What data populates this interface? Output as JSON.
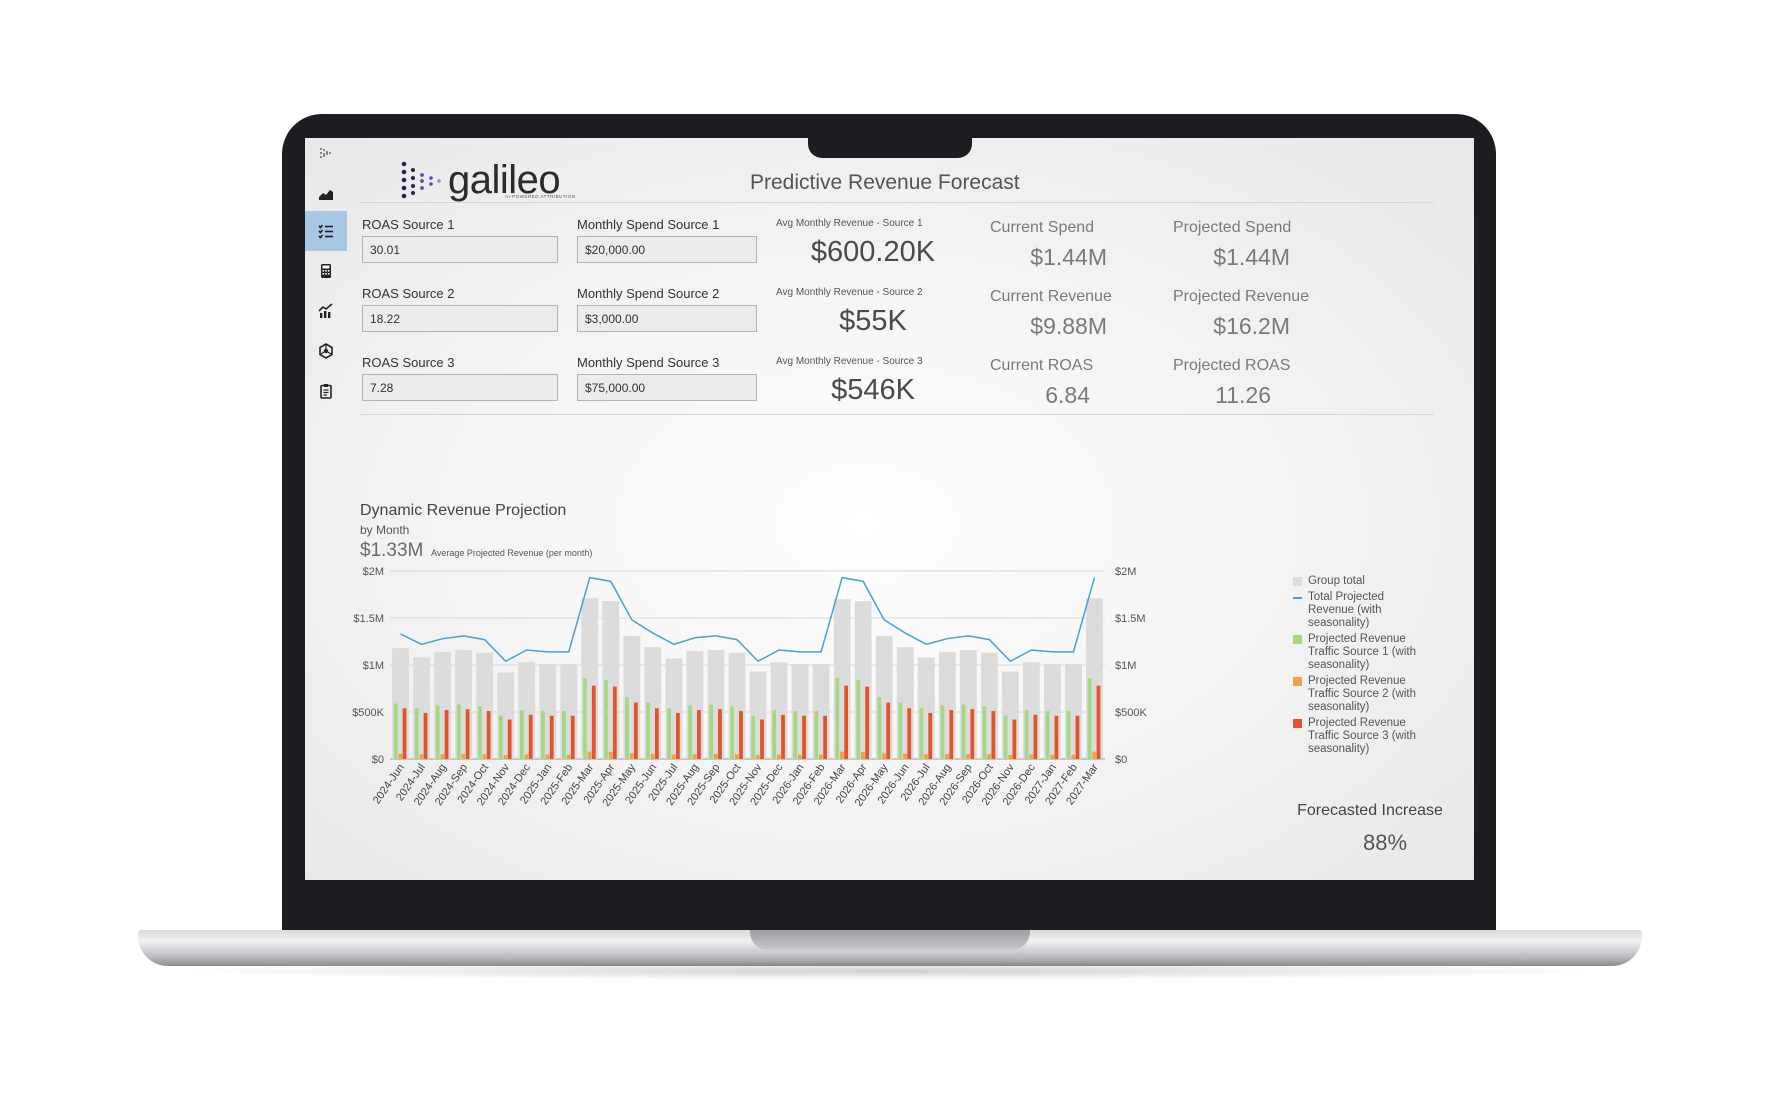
{
  "header": {
    "logo_text": "galileo",
    "logo_tagline": "AI-POWERED ATTRIBUTION",
    "title": "Predictive Revenue Forecast"
  },
  "sidebar": {
    "items": [
      {
        "icon": "filter-icon"
      },
      {
        "icon": "area-chart-icon"
      },
      {
        "icon": "checklist-icon",
        "active": true
      },
      {
        "icon": "calculator-icon"
      },
      {
        "icon": "bar-line-chart-icon"
      },
      {
        "icon": "network-icon"
      },
      {
        "icon": "clipboard-icon"
      }
    ]
  },
  "inputs": {
    "roas": [
      {
        "label": "ROAS Source 1",
        "value": "30.01"
      },
      {
        "label": "ROAS Source 2",
        "value": "18.22"
      },
      {
        "label": "ROAS Source 3",
        "value": "7.28"
      }
    ],
    "spend": [
      {
        "label": "Monthly Spend Source 1",
        "value": "$20,000.00"
      },
      {
        "label": "Monthly Spend Source 2",
        "value": "$3,000.00"
      },
      {
        "label": "Monthly Spend Source 3",
        "value": "$75,000.00"
      }
    ],
    "avg_revenue": [
      {
        "label": "Avg Monthly Revenue - Source 1",
        "value": "$600.20K"
      },
      {
        "label": "Avg Monthly Revenue - Source 2",
        "value": "$55K"
      },
      {
        "label": "Avg Monthly Revenue - Source 3",
        "value": "$546K"
      }
    ]
  },
  "kpis": {
    "current": [
      {
        "label": "Current Spend",
        "value": "$1.44M"
      },
      {
        "label": "Current Revenue",
        "value": "$9.88M"
      },
      {
        "label": "Current ROAS",
        "value": "6.84"
      }
    ],
    "projected": [
      {
        "label": "Projected Spend",
        "value": "$1.44M"
      },
      {
        "label": "Projected Revenue",
        "value": "$16.2M"
      },
      {
        "label": "Projected ROAS",
        "value": "11.26"
      }
    ]
  },
  "chart_section": {
    "title": "Dynamic Revenue Projection",
    "subtitle": "by Month",
    "avg_value": "$1.33M",
    "avg_label": "Average Projected Revenue (per month)",
    "forecast_label": "Forecasted Increase",
    "forecast_value": "88%"
  },
  "colors": {
    "group_total": "#dcdcdc",
    "total_line": "#4a9fd8",
    "source1": "#a6d785",
    "source2": "#f0a04b",
    "source3": "#e2542a"
  },
  "chart_data": {
    "type": "bar",
    "categories": [
      "2024-Jun",
      "2024-Jul",
      "2024-Aug",
      "2024-Sep",
      "2024-Oct",
      "2024-Nov",
      "2024-Dec",
      "2025-Jan",
      "2025-Feb",
      "2025-Mar",
      "2025-Apr",
      "2025-May",
      "2025-Jun",
      "2025-Jul",
      "2025-Aug",
      "2025-Sep",
      "2025-Oct",
      "2025-Nov",
      "2025-Dec",
      "2026-Jan",
      "2026-Feb",
      "2026-Mar",
      "2026-Apr",
      "2026-May",
      "2026-Jun",
      "2026-Jul",
      "2026-Aug",
      "2026-Sep",
      "2026-Oct",
      "2026-Nov",
      "2026-Dec",
      "2027-Jan",
      "2027-Feb",
      "2027-Mar"
    ],
    "y_ticks": [
      "$0",
      "$500K",
      "$1M",
      "$1.5M",
      "$2M"
    ],
    "ylim": [
      0,
      2000000
    ],
    "legend": [
      "Group total",
      "Total Projected Revenue (with seasonality)",
      "Projected Revenue Traffic Source 1 (with seasonality)",
      "Projected Revenue Traffic Source 2 (with seasonality)",
      "Projected Revenue Traffic Source 3 (with seasonality)"
    ],
    "legend_position": "right",
    "series": [
      {
        "name": "Group total",
        "kind": "bar-background",
        "values": [
          1180000,
          1080000,
          1140000,
          1160000,
          1130000,
          920000,
          1030000,
          1010000,
          1010000,
          1710000,
          1680000,
          1310000,
          1190000,
          1070000,
          1150000,
          1160000,
          1130000,
          930000,
          1030000,
          1010000,
          1010000,
          1700000,
          1680000,
          1310000,
          1190000,
          1080000,
          1140000,
          1160000,
          1130000,
          930000,
          1030000,
          1010000,
          1010000,
          1710000
        ]
      },
      {
        "name": "Total Projected Revenue (with seasonality)",
        "kind": "line",
        "values": [
          1330000,
          1220000,
          1280000,
          1310000,
          1270000,
          1040000,
          1160000,
          1140000,
          1140000,
          1930000,
          1890000,
          1480000,
          1340000,
          1220000,
          1290000,
          1310000,
          1270000,
          1040000,
          1160000,
          1140000,
          1140000,
          1930000,
          1890000,
          1480000,
          1340000,
          1220000,
          1280000,
          1310000,
          1270000,
          1040000,
          1160000,
          1140000,
          1140000,
          1930000
        ]
      },
      {
        "name": "Projected Revenue Traffic Source 1 (with seasonality)",
        "kind": "bar",
        "values": [
          590000,
          540000,
          570000,
          580000,
          560000,
          460000,
          520000,
          510000,
          510000,
          860000,
          840000,
          660000,
          600000,
          540000,
          570000,
          580000,
          560000,
          460000,
          520000,
          510000,
          510000,
          860000,
          840000,
          660000,
          600000,
          540000,
          570000,
          580000,
          560000,
          460000,
          520000,
          510000,
          510000,
          860000
        ]
      },
      {
        "name": "Projected Revenue Traffic Source 2 (with seasonality)",
        "kind": "bar",
        "values": [
          55000,
          50000,
          52000,
          53000,
          51000,
          42000,
          47000,
          46000,
          46000,
          78000,
          77000,
          60000,
          55000,
          50000,
          52000,
          53000,
          51000,
          42000,
          47000,
          46000,
          46000,
          78000,
          77000,
          60000,
          55000,
          50000,
          52000,
          53000,
          51000,
          42000,
          47000,
          46000,
          46000,
          78000
        ]
      },
      {
        "name": "Projected Revenue Traffic Source 3 (with seasonality)",
        "kind": "bar",
        "values": [
          540000,
          490000,
          520000,
          530000,
          510000,
          420000,
          470000,
          460000,
          460000,
          780000,
          770000,
          600000,
          540000,
          490000,
          520000,
          530000,
          510000,
          420000,
          470000,
          460000,
          460000,
          780000,
          770000,
          600000,
          540000,
          490000,
          520000,
          530000,
          510000,
          420000,
          470000,
          460000,
          460000,
          780000
        ]
      }
    ]
  }
}
